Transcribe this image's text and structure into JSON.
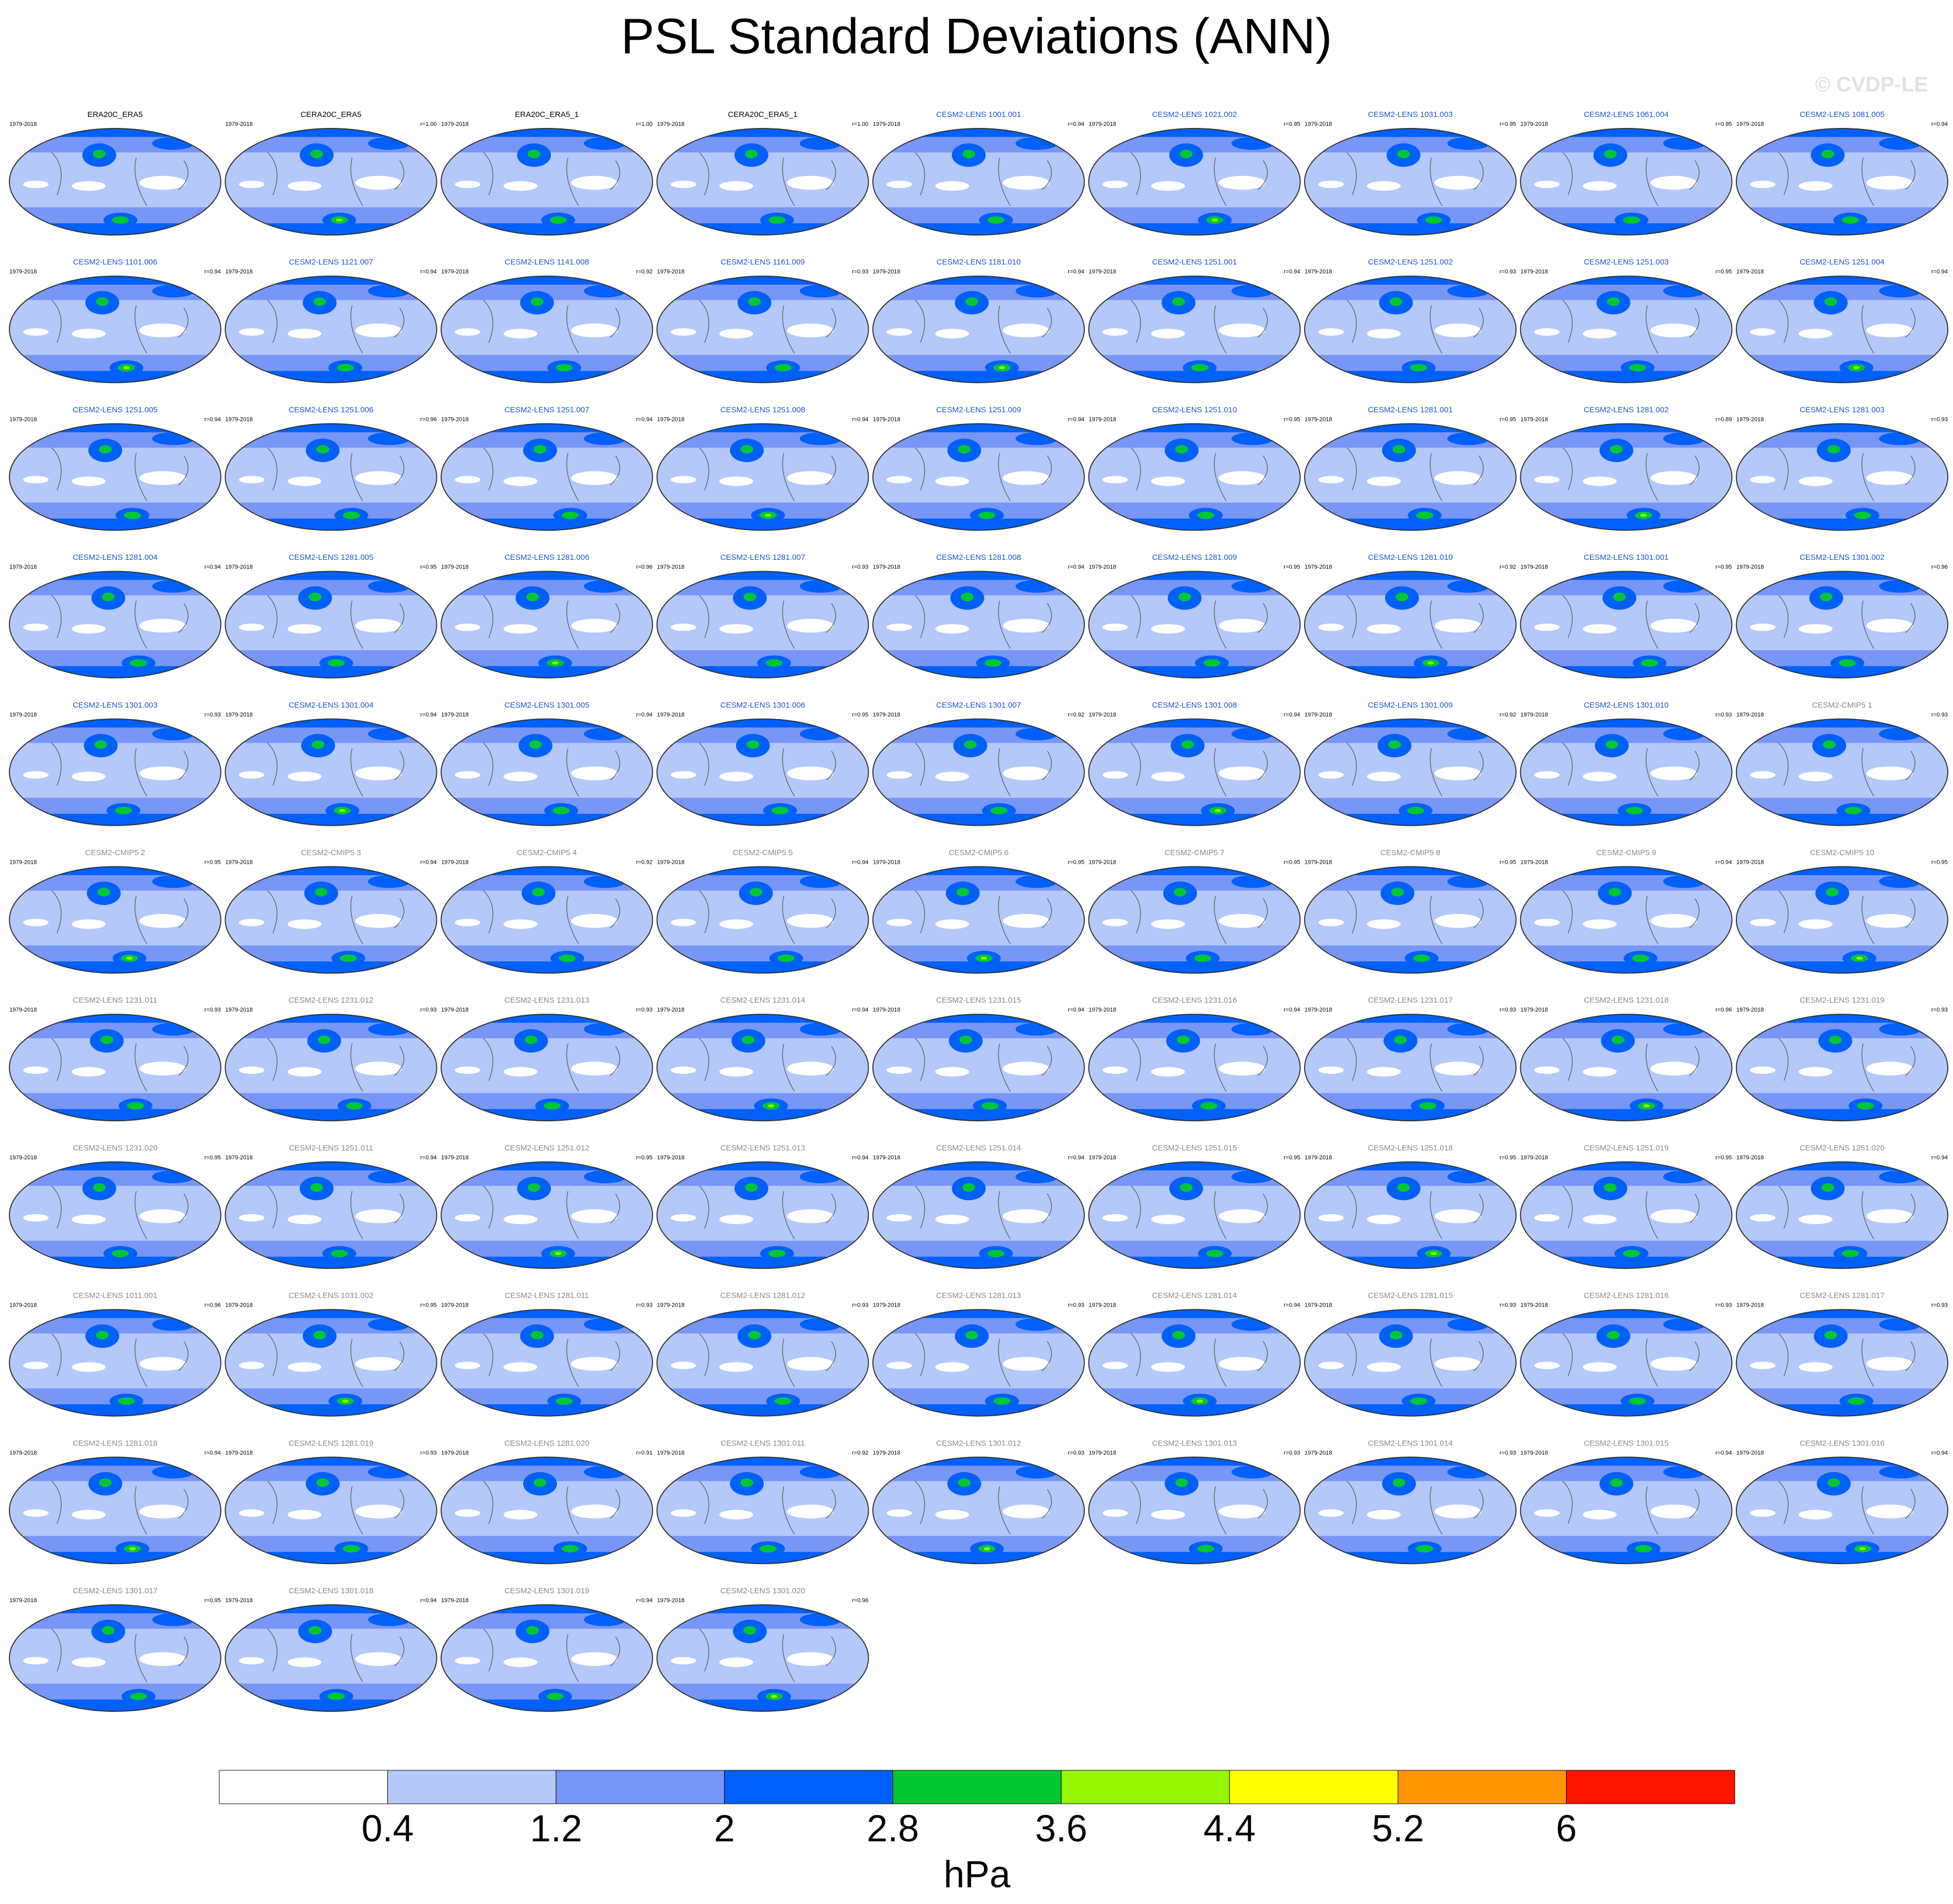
{
  "title": "PSL Standard Deviations (ANN)",
  "watermark": "© CVDP-LE",
  "chart_data": {
    "type": "heatmap",
    "title": "PSL Standard Deviations (ANN)",
    "years": "1979-2018",
    "panels": [
      {
        "name": "ERA20C_ERA5",
        "corr": "",
        "kind": "obs"
      },
      {
        "name": "CERA20C_ERA5",
        "corr": "r=1.00",
        "kind": "obs"
      },
      {
        "name": "ERA20C_ERA5_1",
        "corr": "r=1.00",
        "kind": "obs"
      },
      {
        "name": "CERA20C_ERA5_1",
        "corr": "r=1.00",
        "kind": "obs"
      },
      {
        "name": "CESM2-LENS 1001.001",
        "corr": "r=0.94",
        "kind": "lens"
      },
      {
        "name": "CESM2-LENS 1021.002",
        "corr": "r=0.95",
        "kind": "lens"
      },
      {
        "name": "CESM2-LENS 1031.003",
        "corr": "r=0.95",
        "kind": "lens"
      },
      {
        "name": "CESM2-LENS 1061.004",
        "corr": "r=0.95",
        "kind": "lens"
      },
      {
        "name": "CESM2-LENS 1081.005",
        "corr": "r=0.94",
        "kind": "lens"
      },
      {
        "name": "CESM2-LENS 1101.006",
        "corr": "r=0.94",
        "kind": "lens"
      },
      {
        "name": "CESM2-LENS 1121.007",
        "corr": "r=0.94",
        "kind": "lens"
      },
      {
        "name": "CESM2-LENS 1141.008",
        "corr": "r=0.92",
        "kind": "lens"
      },
      {
        "name": "CESM2-LENS 1161.009",
        "corr": "r=0.93",
        "kind": "lens"
      },
      {
        "name": "CESM2-LENS 1181.010",
        "corr": "r=0.94",
        "kind": "lens"
      },
      {
        "name": "CESM2-LENS 1251.001",
        "corr": "r=0.94",
        "kind": "lens"
      },
      {
        "name": "CESM2-LENS 1251.002",
        "corr": "r=0.93",
        "kind": "lens"
      },
      {
        "name": "CESM2-LENS 1251.003",
        "corr": "r=0.95",
        "kind": "lens"
      },
      {
        "name": "CESM2-LENS 1251.004",
        "corr": "r=0.94",
        "kind": "lens"
      },
      {
        "name": "CESM2-LENS 1251.005",
        "corr": "r=0.94",
        "kind": "lens"
      },
      {
        "name": "CESM2-LENS 1251.006",
        "corr": "r=0.96",
        "kind": "lens"
      },
      {
        "name": "CESM2-LENS 1251.007",
        "corr": "r=0.94",
        "kind": "lens"
      },
      {
        "name": "CESM2-LENS 1251.008",
        "corr": "r=0.94",
        "kind": "lens"
      },
      {
        "name": "CESM2-LENS 1251.009",
        "corr": "r=0.94",
        "kind": "lens"
      },
      {
        "name": "CESM2-LENS 1251.010",
        "corr": "r=0.95",
        "kind": "lens"
      },
      {
        "name": "CESM2-LENS 1281.001",
        "corr": "r=0.95",
        "kind": "lens"
      },
      {
        "name": "CESM2-LENS 1281.002",
        "corr": "r=0.89",
        "kind": "lens"
      },
      {
        "name": "CESM2-LENS 1281.003",
        "corr": "r=0.93",
        "kind": "lens"
      },
      {
        "name": "CESM2-LENS 1281.004",
        "corr": "r=0.94",
        "kind": "lens"
      },
      {
        "name": "CESM2-LENS 1281.005",
        "corr": "r=0.95",
        "kind": "lens"
      },
      {
        "name": "CESM2-LENS 1281.006",
        "corr": "r=0.96",
        "kind": "lens"
      },
      {
        "name": "CESM2-LENS 1281.007",
        "corr": "r=0.93",
        "kind": "lens"
      },
      {
        "name": "CESM2-LENS 1281.008",
        "corr": "r=0.94",
        "kind": "lens"
      },
      {
        "name": "CESM2-LENS 1281.009",
        "corr": "r=0.95",
        "kind": "lens"
      },
      {
        "name": "CESM2-LENS 1281.010",
        "corr": "r=0.92",
        "kind": "lens"
      },
      {
        "name": "CESM2-LENS 1301.001",
        "corr": "r=0.95",
        "kind": "lens"
      },
      {
        "name": "CESM2-LENS 1301.002",
        "corr": "r=0.96",
        "kind": "lens"
      },
      {
        "name": "CESM2-LENS 1301.003",
        "corr": "r=0.93",
        "kind": "lens"
      },
      {
        "name": "CESM2-LENS 1301.004",
        "corr": "r=0.94",
        "kind": "lens"
      },
      {
        "name": "CESM2-LENS 1301.005",
        "corr": "r=0.94",
        "kind": "lens"
      },
      {
        "name": "CESM2-LENS 1301.006",
        "corr": "r=0.95",
        "kind": "lens"
      },
      {
        "name": "CESM2-LENS 1301.007",
        "corr": "r=0.92",
        "kind": "lens"
      },
      {
        "name": "CESM2-LENS 1301.008",
        "corr": "r=0.94",
        "kind": "lens"
      },
      {
        "name": "CESM2-LENS 1301.009",
        "corr": "r=0.92",
        "kind": "lens"
      },
      {
        "name": "CESM2-LENS 1301.010",
        "corr": "r=0.93",
        "kind": "lens"
      },
      {
        "name": "CESM2-CMIP5 1",
        "corr": "r=0.93",
        "kind": "other"
      },
      {
        "name": "CESM2-CMIP5 2",
        "corr": "r=0.95",
        "kind": "other"
      },
      {
        "name": "CESM2-CMIP5 3",
        "corr": "r=0.94",
        "kind": "other"
      },
      {
        "name": "CESM2-CMIP5 4",
        "corr": "r=0.92",
        "kind": "other"
      },
      {
        "name": "CESM2-CMIP5 5",
        "corr": "r=0.94",
        "kind": "other"
      },
      {
        "name": "CESM2-CMIP5 6",
        "corr": "r=0.95",
        "kind": "other"
      },
      {
        "name": "CESM2-CMIP5 7",
        "corr": "r=0.95",
        "kind": "other"
      },
      {
        "name": "CESM2-CMIP5 8",
        "corr": "r=0.95",
        "kind": "other"
      },
      {
        "name": "CESM2-CMIP5 9",
        "corr": "r=0.94",
        "kind": "other"
      },
      {
        "name": "CESM2-CMIP5 10",
        "corr": "r=0.95",
        "kind": "other"
      },
      {
        "name": "CESM2-LENS 1231.011",
        "corr": "r=0.93",
        "kind": "other"
      },
      {
        "name": "CESM2-LENS 1231.012",
        "corr": "r=0.93",
        "kind": "other"
      },
      {
        "name": "CESM2-LENS 1231.013",
        "corr": "r=0.93",
        "kind": "other"
      },
      {
        "name": "CESM2-LENS 1231.014",
        "corr": "r=0.94",
        "kind": "other"
      },
      {
        "name": "CESM2-LENS 1231.015",
        "corr": "r=0.94",
        "kind": "other"
      },
      {
        "name": "CESM2-LENS 1231.016",
        "corr": "r=0.94",
        "kind": "other"
      },
      {
        "name": "CESM2-LENS 1231.017",
        "corr": "r=0.93",
        "kind": "other"
      },
      {
        "name": "CESM2-LENS 1231.018",
        "corr": "r=0.96",
        "kind": "other"
      },
      {
        "name": "CESM2-LENS 1231.019",
        "corr": "r=0.93",
        "kind": "other"
      },
      {
        "name": "CESM2-LENS 1231.020",
        "corr": "r=0.95",
        "kind": "other"
      },
      {
        "name": "CESM2-LENS 1251.011",
        "corr": "r=0.94",
        "kind": "other"
      },
      {
        "name": "CESM2-LENS 1251.012",
        "corr": "r=0.95",
        "kind": "other"
      },
      {
        "name": "CESM2-LENS 1251.013",
        "corr": "r=0.94",
        "kind": "other"
      },
      {
        "name": "CESM2-LENS 1251.014",
        "corr": "r=0.94",
        "kind": "other"
      },
      {
        "name": "CESM2-LENS 1251.015",
        "corr": "r=0.95",
        "kind": "other"
      },
      {
        "name": "CESM2-LENS 1251.018",
        "corr": "r=0.95",
        "kind": "other"
      },
      {
        "name": "CESM2-LENS 1251.019",
        "corr": "r=0.95",
        "kind": "other"
      },
      {
        "name": "CESM2-LENS 1251.020",
        "corr": "r=0.94",
        "kind": "other"
      },
      {
        "name": "CESM2-LENS 1011.001",
        "corr": "r=0.96",
        "kind": "other"
      },
      {
        "name": "CESM2-LENS 1031.002",
        "corr": "r=0.95",
        "kind": "other"
      },
      {
        "name": "CESM2-LENS 1281.011",
        "corr": "r=0.93",
        "kind": "other"
      },
      {
        "name": "CESM2-LENS 1281.012",
        "corr": "r=0.93",
        "kind": "other"
      },
      {
        "name": "CESM2-LENS 1281.013",
        "corr": "r=0.93",
        "kind": "other"
      },
      {
        "name": "CESM2-LENS 1281.014",
        "corr": "r=0.94",
        "kind": "other"
      },
      {
        "name": "CESM2-LENS 1281.015",
        "corr": "r=0.93",
        "kind": "other"
      },
      {
        "name": "CESM2-LENS 1281.016",
        "corr": "r=0.93",
        "kind": "other"
      },
      {
        "name": "CESM2-LENS 1281.017",
        "corr": "r=0.93",
        "kind": "other"
      },
      {
        "name": "CESM2-LENS 1281.018",
        "corr": "r=0.94",
        "kind": "other"
      },
      {
        "name": "CESM2-LENS 1281.019",
        "corr": "r=0.93",
        "kind": "other"
      },
      {
        "name": "CESM2-LENS 1281.020",
        "corr": "r=0.91",
        "kind": "other"
      },
      {
        "name": "CESM2-LENS 1301.011",
        "corr": "r=0.92",
        "kind": "other"
      },
      {
        "name": "CESM2-LENS 1301.012",
        "corr": "r=0.93",
        "kind": "other"
      },
      {
        "name": "CESM2-LENS 1301.013",
        "corr": "r=0.93",
        "kind": "other"
      },
      {
        "name": "CESM2-LENS 1301.014",
        "corr": "r=0.93",
        "kind": "other"
      },
      {
        "name": "CESM2-LENS 1301.015",
        "corr": "r=0.94",
        "kind": "other"
      },
      {
        "name": "CESM2-LENS 1301.016",
        "corr": "r=0.94",
        "kind": "other"
      },
      {
        "name": "CESM2-LENS 1301.017",
        "corr": "r=0.95",
        "kind": "other"
      },
      {
        "name": "CESM2-LENS 1301.018",
        "corr": "r=0.94",
        "kind": "other"
      },
      {
        "name": "CESM2-LENS 1301.019",
        "corr": "r=0.94",
        "kind": "other"
      },
      {
        "name": "CESM2-LENS 1301.020",
        "corr": "r=0.96",
        "kind": "other"
      }
    ],
    "title_colors": {
      "obs": "#000000",
      "lens": "#1a55d0",
      "other": "#8a8a8a"
    },
    "years_color": "#000000",
    "colorbar": {
      "unit": "hPa",
      "tick_labels": [
        "0.4",
        "1.2",
        "2",
        "2.8",
        "3.6",
        "4.4",
        "5.2",
        "6"
      ],
      "colors": [
        "#ffffff",
        "#b4c8fa",
        "#7896f5",
        "#0060fa",
        "#00c832",
        "#96f500",
        "#ffff00",
        "#ff9600",
        "#ff1400"
      ]
    }
  }
}
